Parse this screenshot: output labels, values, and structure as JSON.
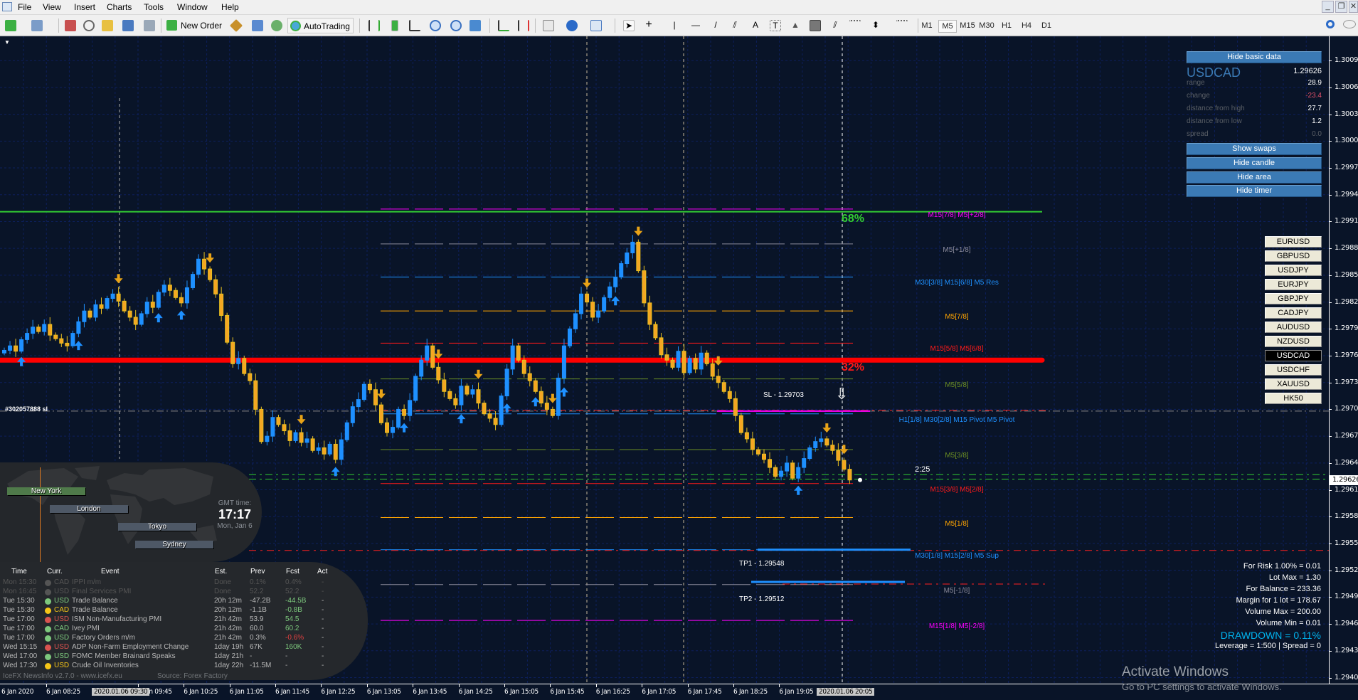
{
  "menu": {
    "items": [
      "File",
      "View",
      "Insert",
      "Charts",
      "Tools",
      "Window",
      "Help"
    ]
  },
  "toolbar": {
    "new_order": "New Order",
    "autotrading": "AutoTrading",
    "timeframes": [
      "M1",
      "M5",
      "M15",
      "M30",
      "H1",
      "H4",
      "D1"
    ],
    "active_timeframe": "M5"
  },
  "window_controls": {
    "minimize": "_",
    "restore": "❐",
    "close": "✕"
  },
  "chart": {
    "symbol": "USDCAD",
    "timeframe": "M5",
    "price_axis": [
      "1.30095",
      "1.30065",
      "1.30035",
      "1.30005",
      "1.29975",
      "1.29945",
      "1.29915",
      "1.29885",
      "1.29855",
      "1.29825",
      "1.29795",
      "1.29765",
      "1.29735",
      "1.29705",
      "1.29675",
      "1.29645",
      "1.29615",
      "1.29585",
      "1.29555",
      "1.29525",
      "1.29495",
      "1.29465",
      "1.29435",
      "1.29405"
    ],
    "current_price": "1.29626",
    "time_axis": [
      "6 Jan 2020",
      "6 Jan 08:25",
      "6 Jan 09:45",
      "6 Jan 10:25",
      "6 Jan 11:05",
      "6 Jan 11:45",
      "6 Jan 12:25",
      "6 Jan 13:05",
      "6 Jan 13:45",
      "6 Jan 14:25",
      "6 Jan 15:05",
      "6 Jan 15:45",
      "6 Jan 16:25",
      "6 Jan 17:05",
      "6 Jan 17:45",
      "6 Jan 18:25",
      "6 Jan 19:05"
    ],
    "time_highlights": [
      "2020.01.06 09:30",
      "2020.01.06 20:05"
    ],
    "candles": {
      "first_open": 1.29768,
      "closes": [
        1.29771,
        1.29776,
        1.2977,
        1.29783,
        1.2979,
        1.29797,
        1.29792,
        1.298,
        1.29788,
        1.29784,
        1.29779,
        1.29776,
        1.2979,
        1.29803,
        1.29815,
        1.29808,
        1.29822,
        1.29818,
        1.29829,
        1.29834,
        1.29826,
        1.29815,
        1.29808,
        1.298,
        1.29812,
        1.29825,
        1.29819,
        1.29836,
        1.29844,
        1.29838,
        1.2983,
        1.29824,
        1.29841,
        1.29856,
        1.29873,
        1.29862,
        1.2985,
        1.29834,
        1.2981,
        1.2978,
        1.29756,
        1.29762,
        1.29745,
        1.29737,
        1.29705,
        1.29669,
        1.29675,
        1.29696,
        1.29688,
        1.29681,
        1.2967,
        1.29679,
        1.29668,
        1.29672,
        1.29659,
        1.29662,
        1.29655,
        1.29666,
        1.29649,
        1.29671,
        1.2969,
        1.29708,
        1.29716,
        1.29733,
        1.29727,
        1.2971,
        1.2969,
        1.29679,
        1.29685,
        1.29705,
        1.29698,
        1.29715,
        1.29742,
        1.2976,
        1.29776,
        1.29752,
        1.29738,
        1.29725,
        1.29717,
        1.2971,
        1.29731,
        1.29722,
        1.29727,
        1.29712,
        1.297,
        1.29695,
        1.29688,
        1.2972,
        1.2975,
        1.29776,
        1.2976,
        1.29745,
        1.29737,
        1.29725,
        1.29712,
        1.29705,
        1.29698,
        1.2974,
        1.29776,
        1.29795,
        1.29812,
        1.29834,
        1.29825,
        1.29808,
        1.29815,
        1.2983,
        1.29842,
        1.29853,
        1.29868,
        1.2988,
        1.29892,
        1.2986,
        1.29824,
        1.298,
        1.29785,
        1.29766,
        1.2976,
        1.29752,
        1.2977,
        1.29746,
        1.29762,
        1.2975,
        1.29768,
        1.29756,
        1.29742,
        1.29735,
        1.29725,
        1.29717,
        1.29698,
        1.29679,
        1.29672,
        1.2966,
        1.29655,
        1.29649,
        1.2964,
        1.2963,
        1.29636,
        1.29645,
        1.29628,
        1.2964,
        1.2965,
        1.29662,
        1.29669,
        1.29672,
        1.29665,
        1.29659,
        1.29648,
        1.29638,
        1.29626
      ]
    },
    "signals": {
      "down": [
        20,
        36,
        52,
        66,
        76,
        83,
        96,
        102,
        111,
        125,
        144,
        147
      ],
      "up": [
        3,
        13,
        27,
        31,
        58,
        70,
        80,
        88,
        93,
        98,
        107,
        139
      ],
      "down_color": "#e8a317",
      "up_color": "#1e90ff"
    },
    "candle_colors": {
      "bull": "#1e90ff",
      "bear": "#f5a623"
    },
    "levels": [
      {
        "label": "M15[7/8]  M5[+2/8]",
        "price": 1.29929,
        "color": "#ff00ff"
      },
      {
        "label": "M5[+1/8]",
        "price": 1.2989,
        "color": "#8a8a9a"
      },
      {
        "label": "M30[3/8] M15[6/8]  M5 Res",
        "price": 1.29853,
        "color": "#1e90ff"
      },
      {
        "label": "M5[7/8]",
        "price": 1.29815,
        "color": "#ffa500"
      },
      {
        "label": "M15[5/8]  M5[6/8]",
        "price": 1.29779,
        "color": "#ff1a1a"
      },
      {
        "label": "M5[5/8]",
        "price": 1.29739,
        "color": "#6b8e23"
      },
      {
        "label": "H1[1/8] M30[2/8] M15 Pivot  M5 Pivot",
        "price": 1.297,
        "color": "#1e90ff"
      },
      {
        "label": "M5[3/8]",
        "price": 1.2966,
        "color": "#6b8e23"
      },
      {
        "label": "M15[3/8]  M5[2/8]",
        "price": 1.29622,
        "color": "#ff1a1a"
      },
      {
        "label": "M5[1/8]",
        "price": 1.29584,
        "color": "#ffa500"
      },
      {
        "label": "M30[1/8] M15[2/8]  M5 Sup",
        "price": 1.29548,
        "color": "#1e90ff"
      },
      {
        "label": "M5[-1/8]",
        "price": 1.29509,
        "color": "#8a8a9a"
      },
      {
        "label": "M15[1/8]  M5[-2/8]",
        "price": 1.29469,
        "color": "#ff00ff"
      }
    ],
    "zones": {
      "upper_pct": "68%",
      "lower_pct": "32%",
      "upper_price": 1.29926,
      "lower_price": 1.2976,
      "upper_color": "#32cd32",
      "lower_color": "#ff0000"
    },
    "trade": {
      "sl_label": "SL - 1.29703",
      "sl_price": 1.29703,
      "tp1_label": "TP1 - 1.29548",
      "tp1_price": 1.29548,
      "tp2_label": "TP2 - 1.29512",
      "tp2_price": 1.29512,
      "order_label": "#302057888 sl"
    },
    "bid_ask": [
      1.29632,
      1.29627
    ],
    "countdown": "2:25"
  },
  "info_panel": {
    "hide_basic": "Hide basic data",
    "symbol": "USDCAD",
    "price": "1.29626",
    "rows": [
      {
        "label": "range",
        "value": "28.9",
        "color": "#ffffff"
      },
      {
        "label": "change",
        "value": "-23.4",
        "color": "#e0506a"
      },
      {
        "label": "distance from high",
        "value": "27.7",
        "color": "#ffffff"
      },
      {
        "label": "distance from low",
        "value": "1.2",
        "color": "#ffffff"
      },
      {
        "label": "spread",
        "value": "0.0",
        "color": "#5a5f66"
      }
    ],
    "buttons": [
      "Show swaps",
      "Hide candle",
      "Hide area",
      "Hide timer"
    ]
  },
  "symbols": {
    "items": [
      "EURUSD",
      "GBPUSD",
      "USDJPY",
      "EURJPY",
      "GBPJPY",
      "CADJPY",
      "AUDUSD",
      "NZDUSD",
      "USDCAD",
      "USDCHF",
      "XAUUSD",
      "HK50"
    ],
    "active": "USDCAD"
  },
  "risk": {
    "lines": [
      "For Risk 1.00% = 0.01",
      "Lot Max = 1.30",
      "For Balance = 233.36",
      "Margin for 1 lot = 178.67",
      "Volume Max = 200.00",
      "Volume Min = 0.01"
    ],
    "drawdown": "DRAWDOWN =  0.11%",
    "footer": "Leverage = 1:500 | Spread = 0"
  },
  "sessions": {
    "markets": [
      "New York",
      "London",
      "Tokyo",
      "Sydney"
    ],
    "gmt_label": "GMT time:",
    "gmt_time": "17:17",
    "gmt_date": "Mon, Jan 6"
  },
  "news": {
    "headers": [
      "Time",
      "Curr.",
      "Event",
      "Est.",
      "Prev",
      "Fcst",
      "Act"
    ],
    "rows": [
      {
        "time": "Mon 15:30",
        "impact": "#555555",
        "curr": "CAD",
        "event": "IPPI m/m",
        "est": "Done",
        "prev": "0.1%",
        "fcst": "0.4%",
        "act": "-",
        "past": true,
        "fcst_color": "#555"
      },
      {
        "time": "Mon 16:45",
        "impact": "#555555",
        "curr": "USD",
        "event": "Final Services PMI",
        "est": "Done",
        "prev": "52.2",
        "fcst": "52.2",
        "act": "-",
        "past": true,
        "fcst_color": "#555"
      },
      {
        "time": "Tue  15:30",
        "impact": "#7dc87d",
        "curr": "USD",
        "event": "Trade Balance",
        "est": "20h 12m",
        "prev": "-47.2B",
        "fcst": "-44.5B",
        "act": "-",
        "fcst_color": "#7dc87d"
      },
      {
        "time": "Tue  15:30",
        "impact": "#f5c518",
        "curr": "CAD",
        "event": "Trade Balance",
        "est": "20h 12m",
        "prev": "-1.1B",
        "fcst": "-0.8B",
        "act": "-",
        "fcst_color": "#7dc87d"
      },
      {
        "time": "Tue  17:00",
        "impact": "#d9534f",
        "curr": "USD",
        "event": "ISM Non-Manufacturing PMI",
        "est": "21h 42m",
        "prev": "53.9",
        "fcst": "54.5",
        "act": "-",
        "fcst_color": "#7dc87d"
      },
      {
        "time": "Tue  17:00",
        "impact": "#7dc87d",
        "curr": "CAD",
        "event": "Ivey PMI",
        "est": "21h 42m",
        "prev": "60.0",
        "fcst": "60.2",
        "act": "-",
        "fcst_color": "#7dc87d"
      },
      {
        "time": "Tue  17:00",
        "impact": "#7dc87d",
        "curr": "USD",
        "event": "Factory Orders m/m",
        "est": "21h 42m",
        "prev": "0.3%",
        "fcst": "-0.6%",
        "act": "-",
        "fcst_color": "#e04040"
      },
      {
        "time": "Wed 15:15",
        "impact": "#d9534f",
        "curr": "USD",
        "event": "ADP Non-Farm Employment Change",
        "est": "1day 19h",
        "prev": "67K",
        "fcst": "160K",
        "act": "-",
        "fcst_color": "#7dc87d"
      },
      {
        "time": "Wed 17:00",
        "impact": "#7dc87d",
        "curr": "USD",
        "event": "FOMC Member Brainard Speaks",
        "est": "1day 21h",
        "prev": "-",
        "fcst": "-",
        "act": "-",
        "fcst_color": "#aaa"
      },
      {
        "time": "Wed 17:30",
        "impact": "#f5c518",
        "curr": "USD",
        "event": "Crude Oil Inventories",
        "est": "1day 22h",
        "prev": "-11.5M",
        "fcst": "-",
        "act": "-",
        "fcst_color": "#aaa"
      }
    ],
    "footer": "IceFX NewsInfo v2.7.0  -  www.icefx.eu",
    "source": "Source: Forex Factory"
  },
  "watermark": {
    "title": "Activate Windows",
    "subtitle": "Go to PC settings to activate Windows."
  }
}
